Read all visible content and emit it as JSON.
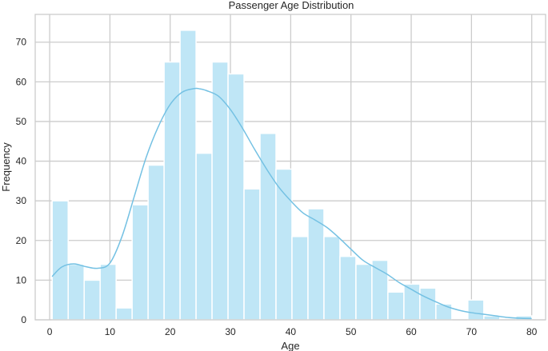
{
  "chart_data": {
    "type": "bar",
    "title": "Passenger Age Distribution",
    "xlabel": "Age",
    "ylabel": "Frequency",
    "xlim": [
      -2.4,
      82.3
    ],
    "ylim": [
      0,
      77
    ],
    "xticks": [
      0,
      10,
      20,
      30,
      40,
      50,
      60,
      70,
      80
    ],
    "yticks": [
      0,
      10,
      20,
      30,
      40,
      50,
      60,
      70
    ],
    "grid": true,
    "legend": "none",
    "histogram": {
      "bin_start": 0.42,
      "bin_width": 2.653,
      "counts": [
        30,
        14,
        10,
        14,
        3,
        29,
        39,
        65,
        73,
        42,
        65,
        62,
        33,
        47,
        38,
        21,
        28,
        21,
        16,
        14,
        15,
        7,
        9,
        8,
        4,
        0,
        5,
        1,
        0,
        1
      ]
    },
    "kde": {
      "x": [
        0.4,
        2,
        4,
        6,
        8,
        10,
        12,
        14,
        16,
        18,
        20,
        22,
        24,
        25,
        26,
        28,
        30,
        32,
        34,
        36,
        38,
        40,
        42,
        44,
        46,
        48,
        50,
        52,
        54,
        56,
        58,
        60,
        62,
        64,
        66,
        68,
        70,
        72,
        74,
        76,
        78,
        80
      ],
      "y": [
        10.9,
        13.3,
        14.1,
        13.4,
        13.0,
        14.3,
        21.0,
        30.9,
        40.9,
        48.6,
        54.3,
        57.4,
        58.3,
        58.2,
        57.8,
        56.4,
        53.0,
        48.3,
        43.0,
        38.0,
        33.5,
        30.0,
        27.0,
        25.2,
        23.3,
        20.7,
        17.8,
        15.0,
        13.2,
        11.5,
        9.4,
        7.7,
        6.0,
        4.6,
        3.3,
        2.4,
        1.8,
        1.4,
        1.0,
        0.6,
        0.4,
        0.3
      ]
    }
  }
}
